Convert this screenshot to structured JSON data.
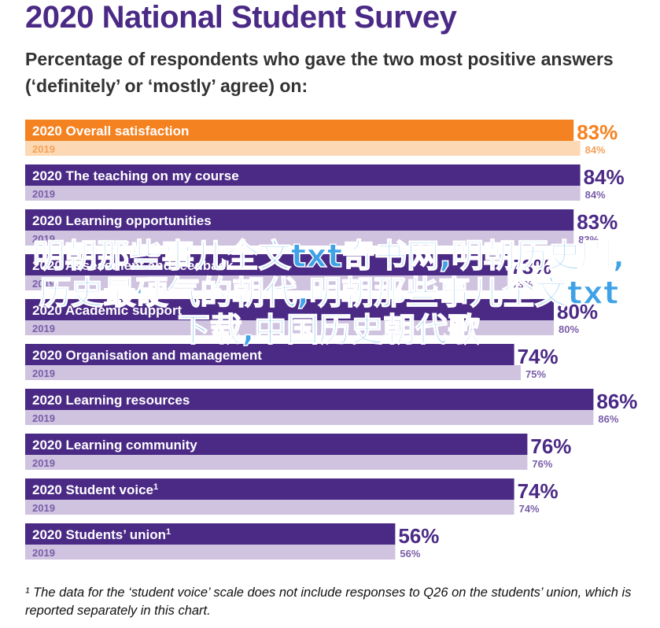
{
  "title": "2020 National Student Survey",
  "subtitle": "Percentage of respondents who gave the two most positive answers (‘definitely’ or ‘mostly’ agree) on:",
  "footnote": "¹ The data for the ‘student voice’ scale does not include responses to Q26 on the students’ union, which is reported separately in this chart.",
  "watermark": "明朝那些事儿全文txt奇书网,明朝历史剧,历史最硬气的朝代,明朝那些事儿全文txt下载,中国历史朝代歌",
  "colors": {
    "highlight_current": "#f58220",
    "highlight_previous": "#fcd9b4",
    "current": "#4b2a86",
    "previous": "#cfc3e0",
    "previous_text": "#7a5ea8",
    "highlight_previous_text": "#f5a25a"
  },
  "chart_data": {
    "type": "bar",
    "orientation": "horizontal",
    "categories": [
      "Overall satisfaction",
      "The teaching on my course",
      "Learning opportunities",
      "Assessment and feedback",
      "Academic support",
      "Organisation and management",
      "Learning resources",
      "Learning community",
      "Student voice",
      "Students’ union"
    ],
    "category_footnote_marks": [
      "",
      "",
      "",
      "",
      "",
      "",
      "",
      "",
      "1",
      "1"
    ],
    "series": [
      {
        "name": "2020",
        "values": [
          83,
          84,
          83,
          73,
          80,
          74,
          86,
          76,
          74,
          56
        ]
      },
      {
        "name": "2019",
        "values": [
          84,
          84,
          83,
          73,
          80,
          75,
          86,
          76,
          74,
          56
        ]
      }
    ],
    "value_suffix": "%",
    "highlight_category": "Overall satisfaction",
    "xlim": [
      0,
      100
    ],
    "grid": false,
    "legend": "none"
  }
}
